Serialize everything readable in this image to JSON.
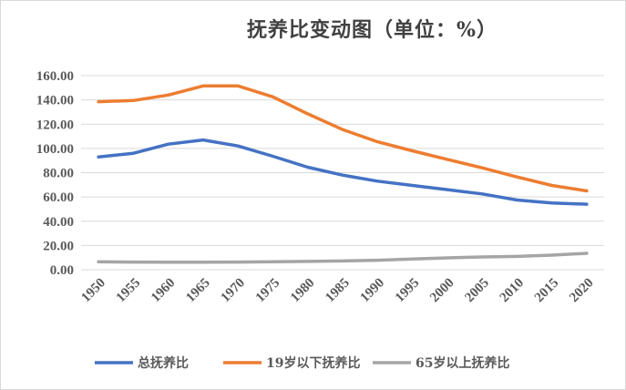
{
  "chart_data": {
    "type": "line",
    "title": "抚养比变动图（单位：%）",
    "xlabel": "",
    "ylabel": "",
    "categories": [
      "1950",
      "1955",
      "1960",
      "1965",
      "1970",
      "1975",
      "1980",
      "1985",
      "1990",
      "1995",
      "2000",
      "2005",
      "2010",
      "2015",
      "2020"
    ],
    "y_tick_labels": [
      "0.00",
      "20.00",
      "40.00",
      "60.00",
      "80.00",
      "100.00",
      "120.00",
      "140.00",
      "160.00"
    ],
    "ylim": [
      0,
      160
    ],
    "grid": true,
    "legend_position": "bottom",
    "series": [
      {
        "name": "总抚养比",
        "color": "#4472C4",
        "values": [
          93,
          96,
          103.5,
          107,
          102,
          93.5,
          84.5,
          78,
          73,
          69.5,
          66,
          62.5,
          57.5,
          55,
          54
        ]
      },
      {
        "name": "19岁以下抚养比",
        "color": "#ED7D31",
        "values": [
          138.5,
          139.5,
          144,
          151.5,
          151.5,
          142.5,
          128.5,
          115.5,
          105.5,
          98,
          91,
          84,
          76.5,
          69.5,
          65
        ]
      },
      {
        "name": "65岁以上抚养比",
        "color": "#A5A5A5",
        "values": [
          6.5,
          6.3,
          6.2,
          6.2,
          6.3,
          6.5,
          6.8,
          7.2,
          7.8,
          8.8,
          9.8,
          10.5,
          11,
          12,
          13.5
        ]
      }
    ]
  }
}
